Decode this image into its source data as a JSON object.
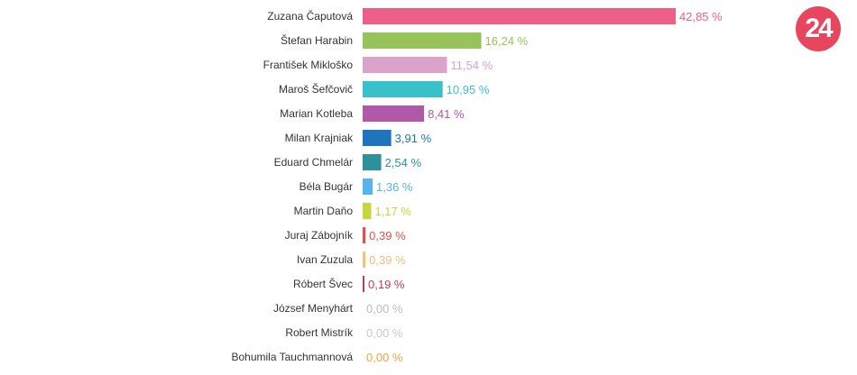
{
  "logo": {
    "text": "24",
    "color": "#e8455f"
  },
  "chart_data": {
    "type": "bar",
    "orientation": "horizontal",
    "title": "",
    "xlabel": "",
    "ylabel": "",
    "grid": false,
    "legend": "none",
    "value_suffix": " %",
    "decimal_separator": ",",
    "xlim": [
      0,
      42.85
    ],
    "categories": [
      "Zuzana Čaputová",
      "Štefan Harabin",
      "František Mikloško",
      "Maroš Šefčovič",
      "Marian Kotleba",
      "Milan Krajniak",
      "Eduard Chmelár",
      "Béla Bugár",
      "Martin Daňo",
      "Juraj Zábojník",
      "Ivan Zuzula",
      "Róbert Švec",
      "József Menyhárt",
      "Robert Mistrík",
      "Bohumila Tauchmannová"
    ],
    "values": [
      42.85,
      16.24,
      11.54,
      10.95,
      8.41,
      3.91,
      2.54,
      1.36,
      1.17,
      0.39,
      0.39,
      0.19,
      0.0,
      0.0,
      0.0
    ],
    "colors": [
      "#ee5f87",
      "#97c45a",
      "#dba2cc",
      "#38c0cb",
      "#b159a9",
      "#1f74bb",
      "#2c919b",
      "#55b4e9",
      "#c9d53c",
      "#e15246",
      "#f5c07e",
      "#c43a5c",
      "#bdbdbd",
      "#c9c9c9",
      "#f5a244"
    ]
  }
}
